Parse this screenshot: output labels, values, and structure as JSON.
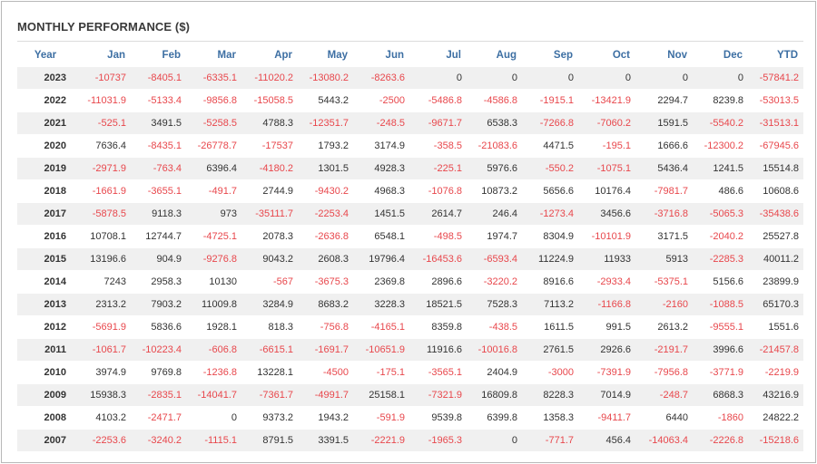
{
  "title": "MONTHLY PERFORMANCE ($)",
  "colors": {
    "negative": "#e8474c",
    "header": "#3d6fa3",
    "text": "#333333"
  },
  "columns": [
    "Year",
    "Jan",
    "Feb",
    "Mar",
    "Apr",
    "May",
    "Jun",
    "Jul",
    "Aug",
    "Sep",
    "Oct",
    "Nov",
    "Dec",
    "YTD"
  ],
  "rows": [
    [
      "2023",
      "-10737",
      "-8405.1",
      "-6335.1",
      "-11020.2",
      "-13080.2",
      "-8263.6",
      "0",
      "0",
      "0",
      "0",
      "0",
      "0",
      "-57841.2"
    ],
    [
      "2022",
      "-11031.9",
      "-5133.4",
      "-9856.8",
      "-15058.5",
      "5443.2",
      "-2500",
      "-5486.8",
      "-4586.8",
      "-1915.1",
      "-13421.9",
      "2294.7",
      "8239.8",
      "-53013.5"
    ],
    [
      "2021",
      "-525.1",
      "3491.5",
      "-5258.5",
      "4788.3",
      "-12351.7",
      "-248.5",
      "-9671.7",
      "6538.3",
      "-7266.8",
      "-7060.2",
      "1591.5",
      "-5540.2",
      "-31513.1"
    ],
    [
      "2020",
      "7636.4",
      "-8435.1",
      "-26778.7",
      "-17537",
      "1793.2",
      "3174.9",
      "-358.5",
      "-21083.6",
      "4471.5",
      "-195.1",
      "1666.6",
      "-12300.2",
      "-67945.6"
    ],
    [
      "2019",
      "-2971.9",
      "-763.4",
      "6396.4",
      "-4180.2",
      "1301.5",
      "4928.3",
      "-225.1",
      "5976.6",
      "-550.2",
      "-1075.1",
      "5436.4",
      "1241.5",
      "15514.8"
    ],
    [
      "2018",
      "-1661.9",
      "-3655.1",
      "-491.7",
      "2744.9",
      "-9430.2",
      "4968.3",
      "-1076.8",
      "10873.2",
      "5656.6",
      "10176.4",
      "-7981.7",
      "486.6",
      "10608.6"
    ],
    [
      "2017",
      "-5878.5",
      "9118.3",
      "973",
      "-35111.7",
      "-2253.4",
      "1451.5",
      "2614.7",
      "246.4",
      "-1273.4",
      "3456.6",
      "-3716.8",
      "-5065.3",
      "-35438.6"
    ],
    [
      "2016",
      "10708.1",
      "12744.7",
      "-4725.1",
      "2078.3",
      "-2636.8",
      "6548.1",
      "-498.5",
      "1974.7",
      "8304.9",
      "-10101.9",
      "3171.5",
      "-2040.2",
      "25527.8"
    ],
    [
      "2015",
      "13196.6",
      "904.9",
      "-9276.8",
      "9043.2",
      "2608.3",
      "19796.4",
      "-16453.6",
      "-6593.4",
      "11224.9",
      "11933",
      "5913",
      "-2285.3",
      "40011.2"
    ],
    [
      "2014",
      "7243",
      "2958.3",
      "10130",
      "-567",
      "-3675.3",
      "2369.8",
      "2896.6",
      "-3220.2",
      "8916.6",
      "-2933.4",
      "-5375.1",
      "5156.6",
      "23899.9"
    ],
    [
      "2013",
      "2313.2",
      "7903.2",
      "11009.8",
      "3284.9",
      "8683.2",
      "3228.3",
      "18521.5",
      "7528.3",
      "7113.2",
      "-1166.8",
      "-2160",
      "-1088.5",
      "65170.3"
    ],
    [
      "2012",
      "-5691.9",
      "5836.6",
      "1928.1",
      "818.3",
      "-756.8",
      "-4165.1",
      "8359.8",
      "-438.5",
      "1611.5",
      "991.5",
      "2613.2",
      "-9555.1",
      "1551.6"
    ],
    [
      "2011",
      "-1061.7",
      "-10223.4",
      "-606.8",
      "-6615.1",
      "-1691.7",
      "-10651.9",
      "11916.6",
      "-10016.8",
      "2761.5",
      "2926.6",
      "-2191.7",
      "3996.6",
      "-21457.8"
    ],
    [
      "2010",
      "3974.9",
      "9769.8",
      "-1236.8",
      "13228.1",
      "-4500",
      "-175.1",
      "-3565.1",
      "2404.9",
      "-3000",
      "-7391.9",
      "-7956.8",
      "-3771.9",
      "-2219.9"
    ],
    [
      "2009",
      "15938.3",
      "-2835.1",
      "-14041.7",
      "-7361.7",
      "-4991.7",
      "25158.1",
      "-7321.9",
      "16809.8",
      "8228.3",
      "7014.9",
      "-248.7",
      "6868.3",
      "43216.9"
    ],
    [
      "2008",
      "4103.2",
      "-2471.7",
      "0",
      "9373.2",
      "1943.2",
      "-591.9",
      "9539.8",
      "6399.8",
      "1358.3",
      "-9411.7",
      "6440",
      "-1860",
      "24822.2"
    ],
    [
      "2007",
      "-2253.6",
      "-3240.2",
      "-1115.1",
      "8791.5",
      "3391.5",
      "-2221.9",
      "-1965.3",
      "0",
      "-771.7",
      "456.4",
      "-14063.4",
      "-2226.8",
      "-15218.6"
    ]
  ]
}
